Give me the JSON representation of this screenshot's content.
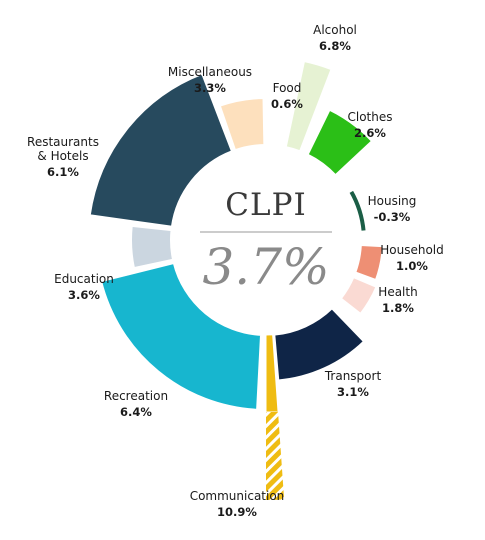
{
  "chart_data": {
    "type": "pie",
    "title": "CLPI",
    "center_value": "3.7%",
    "series": [
      {
        "label": "Food",
        "value_text": "0.6%",
        "value": 0.6,
        "color": "#2f4f4f"
      },
      {
        "label": "Alcohol",
        "value_text": "6.8%",
        "value": 6.8,
        "color": "#e6f2d3"
      },
      {
        "label": "Clothes",
        "value_text": "2.6%",
        "value": 2.6,
        "color": "#2bbf17"
      },
      {
        "label": "Housing",
        "value_text": "-0.3%",
        "value": -0.3,
        "color": "#1b5e46"
      },
      {
        "label": "Household",
        "value_text": "1.0%",
        "value": 1.0,
        "color": "#ee8f74"
      },
      {
        "label": "Health",
        "value_text": "1.8%",
        "value": 1.8,
        "color": "#fadad3"
      },
      {
        "label": "Transport",
        "value_text": "3.1%",
        "value": 3.1,
        "color": "#0f2547"
      },
      {
        "label": "Communication",
        "value_text": "10.9%",
        "value": 10.9,
        "color": "#efbc12"
      },
      {
        "label": "Recreation",
        "value_text": "6.4%",
        "value": 6.4,
        "color": "#17b6cf"
      },
      {
        "label": "Education",
        "value_text": "3.6%",
        "value": 3.6,
        "color": "#cbd6e0"
      },
      {
        "label": "Restaurants & Hotels",
        "value_text": "6.1%",
        "value": 6.1,
        "color": "#274a5e"
      },
      {
        "label": "Miscellaneous",
        "value_text": "3.3%",
        "value": 3.3,
        "color": "#fde0bd"
      }
    ]
  }
}
